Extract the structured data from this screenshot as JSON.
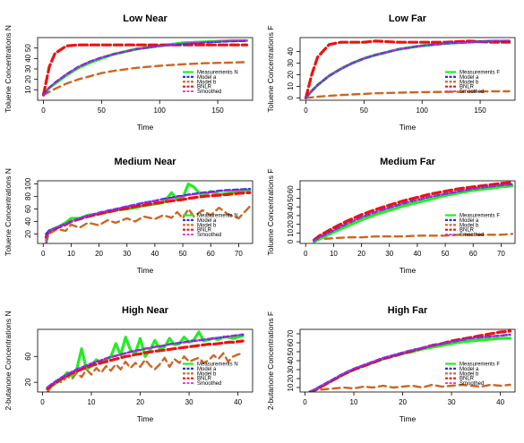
{
  "colors": {
    "measurements": "#22ee22",
    "model_a": "#2233dd",
    "model_b": "#cc6622",
    "bnlr": "#ee1111",
    "smoothed": "#cc22dd"
  },
  "chart_data": [
    {
      "type": "line",
      "title": "Low Near",
      "xlabel": "Time",
      "ylabel": "Toluene Concentrations N",
      "xlim": [
        -5,
        180
      ],
      "ylim": [
        0,
        60
      ],
      "xticks": [
        0,
        50,
        100,
        150
      ],
      "yticks": [
        10,
        20,
        30,
        40,
        50
      ],
      "legend_position": "bottom-right",
      "legend": [
        "Measurements N",
        "Model a",
        "Model b",
        "BNLR",
        "Smoothed"
      ],
      "x": [
        0,
        5,
        10,
        20,
        30,
        40,
        50,
        60,
        80,
        100,
        120,
        140,
        160,
        175
      ],
      "series": [
        {
          "name": "Measurements N",
          "key": "measurements",
          "values": [
            6,
            12,
            16,
            24,
            31,
            36,
            40,
            44,
            49,
            52,
            55,
            56,
            57,
            57
          ]
        },
        {
          "name": "Model a",
          "key": "model_a",
          "values": [
            5,
            12,
            17,
            25,
            32,
            37,
            41,
            44,
            49,
            52,
            54,
            55.5,
            56.5,
            57
          ]
        },
        {
          "name": "Model b",
          "key": "model_b",
          "values": [
            5,
            8,
            11,
            16,
            20,
            23,
            26,
            28,
            31,
            33,
            34.5,
            35.5,
            36,
            36.5
          ]
        },
        {
          "name": "BNLR",
          "key": "bnlr",
          "values": [
            5,
            32,
            45,
            52,
            53,
            53,
            53,
            53,
            53,
            53,
            53,
            53,
            53,
            53
          ]
        },
        {
          "name": "Smoothed",
          "key": "smoothed",
          "values": [
            5,
            12,
            17,
            25,
            32,
            37,
            41,
            44,
            49,
            52,
            54.5,
            56,
            57,
            57.5
          ]
        }
      ]
    },
    {
      "type": "line",
      "title": "Low Far",
      "xlabel": "Time",
      "ylabel": "Toluene Concentrations F",
      "xlim": [
        -5,
        180
      ],
      "ylim": [
        -2,
        52
      ],
      "xticks": [
        0,
        50,
        100,
        150
      ],
      "yticks": [
        0,
        10,
        20,
        30,
        40
      ],
      "legend_position": "bottom-right",
      "legend": [
        "Measurements F",
        "Model a",
        "Model b",
        "BNLR",
        "Smoothed"
      ],
      "x": [
        0,
        5,
        10,
        20,
        30,
        40,
        50,
        60,
        80,
        100,
        120,
        140,
        160,
        175
      ],
      "series": [
        {
          "name": "Measurements F",
          "key": "measurements",
          "values": [
            0,
            6,
            11,
            19,
            25,
            30,
            34,
            37,
            42,
            45,
            47,
            48,
            49,
            49
          ]
        },
        {
          "name": "Model a",
          "key": "model_a",
          "values": [
            0,
            6,
            11,
            19,
            25,
            30,
            34,
            37,
            42,
            45,
            47,
            48,
            49,
            49
          ]
        },
        {
          "name": "Model b",
          "key": "model_b",
          "values": [
            0,
            0.5,
            1,
            1.8,
            2.5,
            3,
            3.5,
            4,
            4.5,
            5,
            5.2,
            5.4,
            5.6,
            5.7
          ]
        },
        {
          "name": "BNLR",
          "key": "bnlr",
          "values": [
            0,
            20,
            35,
            46,
            48,
            48,
            48,
            49,
            48,
            48,
            48,
            49,
            48,
            48
          ]
        },
        {
          "name": "Smoothed",
          "key": "smoothed",
          "values": [
            0,
            6,
            11,
            19,
            25,
            30,
            34,
            37,
            42,
            45,
            47,
            48,
            49,
            49.5
          ]
        }
      ]
    },
    {
      "type": "line",
      "title": "Medium Near",
      "xlabel": "Time",
      "ylabel": "Toluene Concentrations N",
      "xlim": [
        -2,
        75
      ],
      "ylim": [
        5,
        105
      ],
      "xticks": [
        0,
        10,
        20,
        30,
        40,
        50,
        60,
        70
      ],
      "yticks": [
        20,
        40,
        60,
        80,
        100
      ],
      "legend_position": "bottom-right",
      "legend": [
        "Measurements N",
        "Model a",
        "Model b",
        "BNLR",
        "Smoothed"
      ],
      "x": [
        1,
        2,
        5,
        8,
        10,
        13,
        16,
        20,
        23,
        26,
        30,
        33,
        36,
        40,
        43,
        46,
        48,
        50,
        52,
        54,
        57,
        60,
        63,
        66,
        70,
        74
      ],
      "series": [
        {
          "name": "Measurements N",
          "key": "measurements",
          "values": [
            10,
            25,
            30,
            38,
            45,
            45,
            50,
            52,
            55,
            58,
            60,
            62,
            65,
            68,
            70,
            86,
            75,
            78,
            100,
            95,
            80,
            88,
            83,
            85,
            88,
            90
          ]
        },
        {
          "name": "Model a",
          "key": "model_a",
          "values": [
            20,
            25,
            31,
            36,
            40,
            45,
            49,
            54,
            57,
            60,
            64,
            67,
            70,
            73,
            76,
            78,
            80,
            81,
            83,
            84,
            86,
            87,
            89,
            90,
            91,
            92
          ]
        },
        {
          "name": "Model b",
          "key": "model_b",
          "values": [
            5,
            20,
            28,
            25,
            35,
            30,
            38,
            34,
            42,
            38,
            45,
            40,
            48,
            44,
            50,
            46,
            55,
            45,
            60,
            48,
            58,
            50,
            62,
            52,
            45,
            64
          ]
        },
        {
          "name": "BNLR",
          "key": "bnlr",
          "values": [
            15,
            24,
            30,
            35,
            40,
            44,
            48,
            52,
            55,
            58,
            61,
            64,
            66,
            69,
            71,
            73,
            74,
            75,
            77,
            78,
            80,
            81,
            82,
            83,
            85,
            86
          ]
        },
        {
          "name": "Smoothed",
          "key": "smoothed",
          "values": [
            5,
            24,
            31,
            36,
            40,
            45,
            49,
            54,
            57,
            60,
            64,
            67,
            70,
            73,
            75,
            77,
            79,
            80,
            82,
            83,
            85,
            86,
            88,
            89,
            90,
            91
          ]
        }
      ]
    },
    {
      "type": "line",
      "title": "Medium Far",
      "xlabel": "Time",
      "ylabel": "Toluene Concentrations F",
      "xlim": [
        -2,
        75
      ],
      "ylim": [
        -2,
        70
      ],
      "xticks": [
        0,
        10,
        20,
        30,
        40,
        50,
        60,
        70
      ],
      "yticks": [
        0,
        10,
        20,
        30,
        40,
        50,
        60
      ],
      "legend_position": "bottom-right",
      "legend": [
        "Measurements F",
        "Model a",
        "Model b",
        "BNLR",
        "Smoothed"
      ],
      "x": [
        3,
        5,
        10,
        15,
        20,
        25,
        30,
        35,
        40,
        45,
        50,
        55,
        60,
        65,
        70,
        74
      ],
      "series": [
        {
          "name": "Measurements F",
          "key": "measurements",
          "values": [
            0,
            3,
            11,
            18,
            25,
            31,
            36,
            41,
            45,
            49,
            53,
            56,
            59,
            61,
            63,
            64
          ]
        },
        {
          "name": "Model a",
          "key": "model_a",
          "values": [
            1,
            5,
            13,
            21,
            28,
            34,
            39,
            44,
            48,
            52,
            55,
            58,
            61,
            63,
            65,
            66
          ]
        },
        {
          "name": "Model b",
          "key": "model_b",
          "values": [
            0,
            3,
            4,
            5,
            5,
            6,
            6,
            6,
            7,
            7,
            7,
            8,
            8,
            8,
            8,
            9
          ]
        },
        {
          "name": "BNLR",
          "key": "bnlr",
          "values": [
            2,
            7,
            16,
            24,
            31,
            37,
            42,
            47,
            51,
            55,
            58,
            61,
            63,
            65,
            67,
            68
          ]
        },
        {
          "name": "Smoothed",
          "key": "smoothed",
          "values": [
            1,
            5,
            13,
            21,
            28,
            34,
            39,
            44,
            48,
            52,
            55,
            58,
            61,
            63,
            65,
            66
          ]
        }
      ]
    },
    {
      "type": "line",
      "title": "High Near",
      "xlabel": "Time",
      "ylabel": "2-butanone Concentrations N",
      "xlim": [
        -1,
        43
      ],
      "ylim": [
        5,
        102
      ],
      "xticks": [
        0,
        10,
        20,
        30,
        40
      ],
      "yticks": [
        20,
        60
      ],
      "legend_position": "bottom-right",
      "legend": [
        "Measurements N",
        "Model a",
        "Model b",
        "BNLR",
        "Smoothed"
      ],
      "x": [
        1,
        2,
        3,
        4,
        5,
        6,
        7,
        8,
        9,
        10,
        11,
        12,
        13,
        14,
        15,
        16,
        17,
        18,
        19,
        20,
        21,
        22,
        23,
        24,
        25,
        26,
        27,
        28,
        29,
        30,
        31,
        32,
        33,
        34,
        35,
        36,
        37,
        38,
        39,
        40,
        41
      ],
      "series": [
        {
          "name": "Measurements N",
          "key": "measurements",
          "values": [
            10,
            15,
            20,
            25,
            35,
            30,
            40,
            72,
            40,
            45,
            55,
            50,
            55,
            60,
            80,
            62,
            90,
            70,
            65,
            88,
            60,
            70,
            85,
            72,
            75,
            88,
            78,
            80,
            90,
            82,
            86,
            98,
            84,
            86,
            88,
            86,
            90,
            90,
            88,
            90,
            92
          ]
        },
        {
          "name": "Model a",
          "key": "model_a",
          "values": [
            12,
            18,
            23,
            28,
            32,
            36,
            40,
            43,
            46,
            49,
            52,
            54,
            57,
            59,
            61,
            63,
            65,
            67,
            69,
            70,
            72,
            73,
            75,
            76,
            77,
            79,
            80,
            81,
            82,
            83,
            84,
            85,
            86,
            87,
            88,
            89,
            90,
            91,
            92,
            93,
            94
          ]
        },
        {
          "name": "Model b",
          "key": "model_b",
          "values": [
            5,
            15,
            22,
            20,
            30,
            25,
            35,
            28,
            40,
            32,
            42,
            35,
            45,
            38,
            48,
            40,
            52,
            42,
            50,
            44,
            55,
            46,
            40,
            48,
            58,
            44,
            56,
            50,
            60,
            52,
            55,
            58,
            50,
            54,
            62,
            56,
            65,
            52,
            60,
            63,
            65
          ]
        },
        {
          "name": "BNLR",
          "key": "bnlr",
          "values": [
            10,
            16,
            21,
            26,
            30,
            34,
            37,
            40,
            43,
            46,
            48,
            50,
            52,
            54,
            56,
            58,
            60,
            61,
            63,
            64,
            66,
            67,
            68,
            69,
            70,
            71,
            72,
            73,
            74,
            75,
            76,
            77,
            78,
            79,
            79,
            80,
            81,
            82,
            82,
            83,
            84
          ]
        },
        {
          "name": "Smoothed",
          "key": "smoothed",
          "values": [
            12,
            18,
            23,
            28,
            32,
            36,
            40,
            43,
            46,
            49,
            52,
            54,
            57,
            59,
            61,
            63,
            65,
            67,
            69,
            70,
            72,
            73,
            75,
            76,
            77,
            79,
            80,
            81,
            82,
            83,
            84,
            85,
            86,
            87,
            88,
            89,
            90,
            91,
            92,
            93,
            94
          ]
        }
      ]
    },
    {
      "type": "line",
      "title": "High Far",
      "xlabel": "Time",
      "ylabel": "2-butanone Concentrations F",
      "xlim": [
        -1,
        43
      ],
      "ylim": [
        5,
        75
      ],
      "xticks": [
        0,
        10,
        20,
        30,
        40
      ],
      "yticks": [
        10,
        20,
        30,
        40,
        50,
        60,
        70
      ],
      "legend_position": "bottom-right",
      "legend": [
        "Measurements F",
        "Model a",
        "Model b",
        "BNLR",
        "Smoothed"
      ],
      "x": [
        1,
        2,
        4,
        6,
        8,
        10,
        12,
        14,
        16,
        18,
        20,
        22,
        24,
        26,
        28,
        30,
        32,
        34,
        36,
        38,
        40,
        42
      ],
      "series": [
        {
          "name": "Measurements F",
          "key": "measurements",
          "values": [
            5,
            7,
            13,
            19,
            25,
            30,
            34,
            38,
            42,
            45,
            48,
            50,
            53,
            55,
            57,
            59,
            61,
            62,
            63,
            64,
            65,
            65
          ]
        },
        {
          "name": "Model a",
          "key": "model_a",
          "values": [
            5,
            8,
            14,
            20,
            26,
            31,
            35,
            39,
            43,
            46,
            49,
            52,
            54,
            57,
            59,
            61,
            63,
            65,
            66,
            67,
            68,
            69
          ]
        },
        {
          "name": "Model b",
          "key": "model_b",
          "values": [
            5,
            7,
            8,
            9,
            10,
            9,
            11,
            10,
            12,
            10,
            11,
            12,
            10,
            13,
            11,
            12,
            13,
            12,
            11,
            13,
            12,
            13
          ]
        },
        {
          "name": "BNLR",
          "key": "bnlr",
          "values": [
            5,
            7,
            13,
            19,
            25,
            30,
            34,
            38,
            42,
            45,
            48,
            51,
            54,
            57,
            59,
            62,
            64,
            66,
            68,
            70,
            72,
            73
          ]
        },
        {
          "name": "Smoothed",
          "key": "smoothed",
          "values": [
            5,
            8,
            14,
            20,
            26,
            31,
            35,
            39,
            43,
            46,
            49,
            52,
            54,
            57,
            59,
            61,
            63,
            65,
            66,
            67,
            68,
            69
          ]
        }
      ]
    }
  ]
}
